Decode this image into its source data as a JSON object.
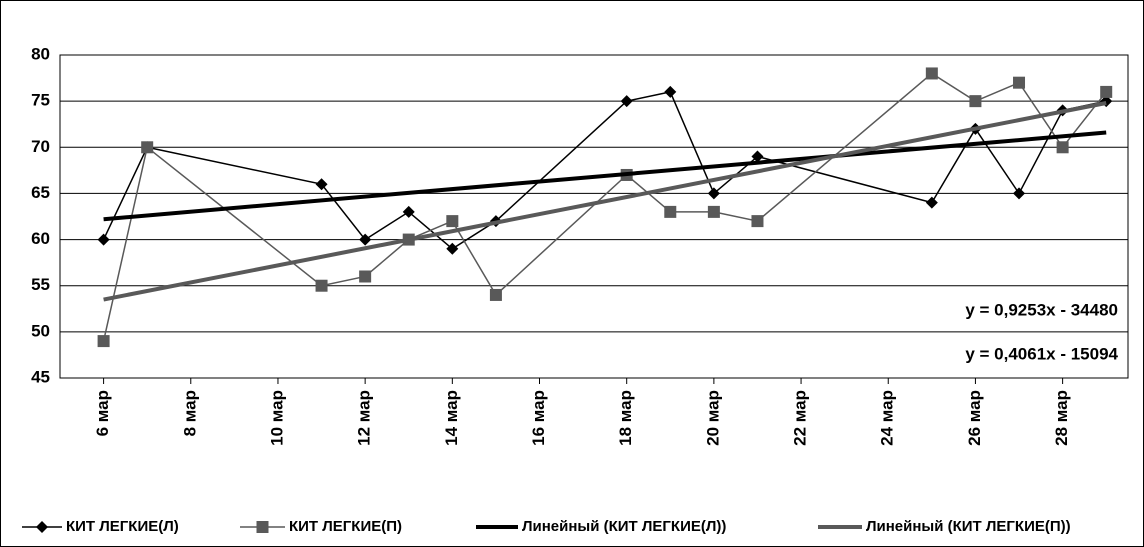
{
  "chart_data": {
    "type": "line",
    "x": [
      6,
      7,
      11,
      12,
      13,
      14,
      15,
      18,
      19,
      20,
      21,
      25,
      26,
      27,
      28,
      29
    ],
    "xlim": [
      5,
      29.5
    ],
    "xticks": [
      {
        "value": 6,
        "label": "6 мар"
      },
      {
        "value": 8,
        "label": "8 мар"
      },
      {
        "value": 10,
        "label": "10 мар"
      },
      {
        "value": 12,
        "label": "12 мар"
      },
      {
        "value": 14,
        "label": "14 мар"
      },
      {
        "value": 16,
        "label": "16 мар"
      },
      {
        "value": 18,
        "label": "18 мар"
      },
      {
        "value": 20,
        "label": "20 мар"
      },
      {
        "value": 22,
        "label": "22 мар"
      },
      {
        "value": 24,
        "label": "24 мар"
      },
      {
        "value": 26,
        "label": "26 мар"
      },
      {
        "value": 28,
        "label": "28 мар"
      }
    ],
    "ylim": [
      45,
      80
    ],
    "yticks": [
      45,
      50,
      55,
      60,
      65,
      70,
      75,
      80
    ],
    "grid": true,
    "legend": "bottom",
    "series": [
      {
        "name": "КИТ ЛЕГКИЕ(Л)",
        "color": "#000000",
        "marker": "diamond",
        "values": [
          60,
          70,
          66,
          60,
          63,
          59,
          62,
          75,
          76,
          65,
          69,
          64,
          72,
          65,
          74,
          75
        ]
      },
      {
        "name": "КИТ ЛЕГКИЕ(П)",
        "color": "#595959",
        "marker": "square",
        "values": [
          49,
          70,
          55,
          56,
          60,
          62,
          54,
          67,
          63,
          63,
          62,
          78,
          75,
          77,
          70,
          76
        ]
      },
      {
        "name": "Линейный (КИТ ЛЕГКИЕ(Л))",
        "color": "#000000",
        "x": [
          6,
          29
        ],
        "values": [
          62.2,
          71.6
        ]
      },
      {
        "name": "Линейный (КИТ ЛЕГКИЕ(П))",
        "color": "#595959",
        "x": [
          6,
          29
        ],
        "values": [
          53.5,
          74.8
        ]
      }
    ],
    "annotations": [
      "y = 0,9253x - 34480",
      "y = 0,4061x - 15094"
    ]
  }
}
